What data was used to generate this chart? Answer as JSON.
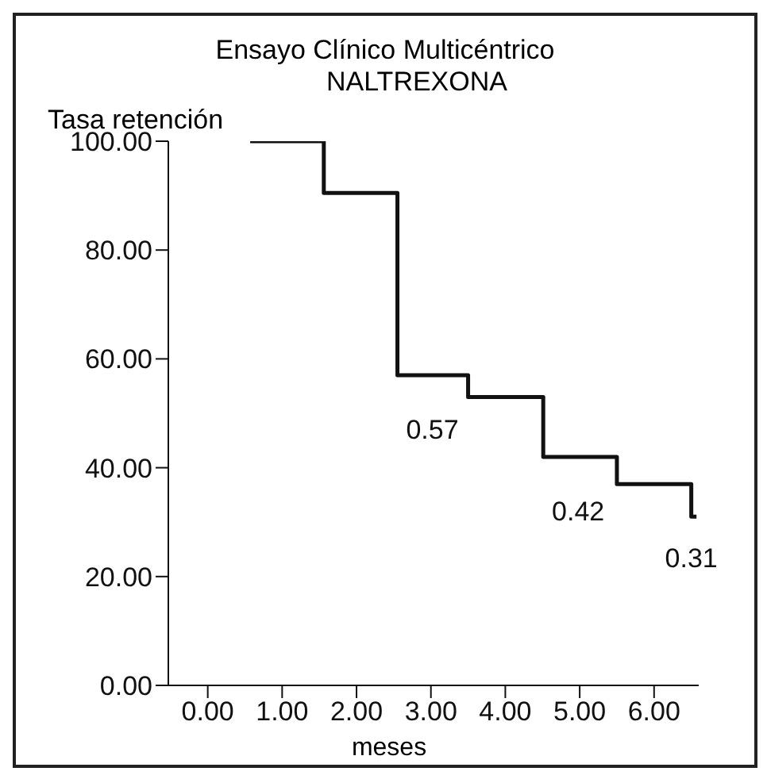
{
  "chart_data": {
    "type": "step",
    "title": "Ensayo Clínico Multicéntrico",
    "subtitle": "NALTREXONA",
    "ylabel": "Tasa retención",
    "xlabel": "meses",
    "x": [
      0.57,
      1.56,
      2.55,
      3.5,
      4.51,
      5.5,
      6.5,
      6.57
    ],
    "series": [
      {
        "color": "#111111",
        "values": [
          100,
          90.5,
          57,
          53,
          42,
          37,
          31,
          31
        ]
      }
    ],
    "xlim": [
      -0.53,
      6.6
    ],
    "xticks": [
      {
        "value": 0,
        "label": "0.00"
      },
      {
        "value": 1,
        "label": "1.00"
      },
      {
        "value": 2,
        "label": "2.00"
      },
      {
        "value": 3,
        "label": "3.00"
      },
      {
        "value": 4,
        "label": "4.00"
      },
      {
        "value": 5,
        "label": "5.00"
      },
      {
        "value": 6,
        "label": "6.00"
      }
    ],
    "ylim": [
      0,
      100
    ],
    "yticks": [
      {
        "value": 0,
        "label": "0.00"
      },
      {
        "value": 20,
        "label": "20.00"
      },
      {
        "value": 40,
        "label": "40.00"
      },
      {
        "value": 60,
        "label": "60.00"
      },
      {
        "value": 80,
        "label": "80.00"
      },
      {
        "value": 100,
        "label": "100.00"
      }
    ],
    "annotations": [
      {
        "text": "0.57",
        "x": 2.55,
        "y": 57
      },
      {
        "text": "0.42",
        "x": 4.51,
        "y": 42
      },
      {
        "text": "0.31",
        "x": 6.5,
        "y": 31
      }
    ],
    "grid": false,
    "legend": false,
    "marker": "none",
    "line_style": "solid"
  }
}
